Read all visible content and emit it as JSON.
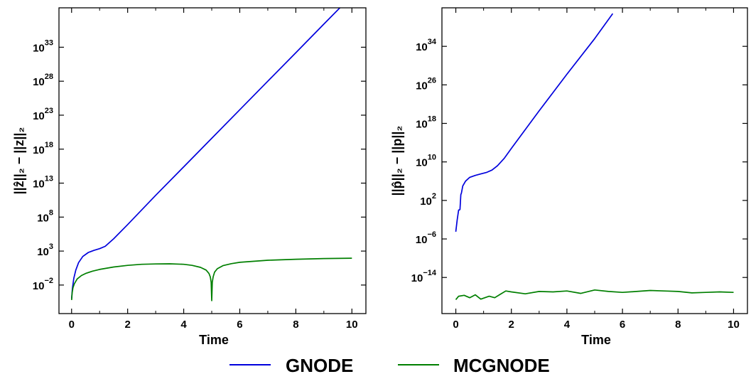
{
  "legend": [
    {
      "name": "GNODE",
      "color": "#0000dd"
    },
    {
      "name": "MCGNODE",
      "color": "#007f00"
    }
  ],
  "chart_data": [
    {
      "type": "line",
      "xlabel": "Time",
      "ylabel": "||ẑ||₂ − ||z||₂",
      "yscale": "log",
      "xlim": [
        -0.45,
        10.5
      ],
      "ylim_exp": [
        -6.2,
        38.8
      ],
      "xticks": [
        0,
        2,
        4,
        6,
        8,
        10
      ],
      "yticks": [
        {
          "exp": -2,
          "label": "10",
          "sup": "−2"
        },
        {
          "exp": 3,
          "label": "10",
          "sup": "3"
        },
        {
          "exp": 8,
          "label": "10",
          "sup": "8"
        },
        {
          "exp": 13,
          "label": "10",
          "sup": "13"
        },
        {
          "exp": 18,
          "label": "10",
          "sup": "18"
        },
        {
          "exp": 23,
          "label": "10",
          "sup": "23"
        },
        {
          "exp": 28,
          "label": "10",
          "sup": "28"
        },
        {
          "exp": 33,
          "label": "10",
          "sup": "33"
        }
      ],
      "series": [
        {
          "name": "GNODE",
          "color": "#0000dd",
          "x": [
            0.0,
            0.03,
            0.08,
            0.15,
            0.25,
            0.4,
            0.6,
            0.8,
            1.0,
            1.2,
            1.5,
            2.0,
            3.0,
            4.0,
            5.0,
            6.0,
            7.0,
            8.0,
            9.0,
            10.0
          ],
          "log10_y": [
            -4.0,
            -2.5,
            -1.0,
            0.2,
            1.3,
            2.2,
            2.8,
            3.1,
            3.35,
            3.7,
            4.8,
            6.9,
            11.2,
            15.4,
            19.6,
            23.8,
            28.0,
            32.2,
            36.4,
            40.6
          ]
        },
        {
          "name": "MCGNODE",
          "color": "#007f00",
          "x": [
            0.0,
            0.02,
            0.05,
            0.1,
            0.2,
            0.35,
            0.5,
            0.75,
            1.0,
            1.5,
            2.0,
            2.5,
            3.0,
            3.5,
            4.0,
            4.3,
            4.6,
            4.8,
            4.9,
            4.95,
            4.98,
            5.0,
            5.02,
            5.05,
            5.1,
            5.2,
            5.4,
            5.7,
            6.0,
            7.0,
            8.0,
            9.0,
            10.0
          ],
          "log10_y": [
            -4.2,
            -3.2,
            -2.4,
            -1.8,
            -1.1,
            -0.6,
            -0.3,
            0.05,
            0.3,
            0.65,
            0.9,
            1.05,
            1.1,
            1.13,
            1.05,
            0.9,
            0.6,
            0.2,
            -0.3,
            -0.8,
            -1.6,
            -4.3,
            -1.6,
            -0.8,
            -0.1,
            0.4,
            0.85,
            1.15,
            1.35,
            1.65,
            1.8,
            1.9,
            1.95
          ]
        }
      ]
    },
    {
      "type": "line",
      "xlabel": "Time",
      "ylabel": "||p̂||₂ − ||p||₂",
      "yscale": "log",
      "xlim": [
        -0.5,
        10.5
      ],
      "ylim_exp": [
        -21.5,
        42.0
      ],
      "xticks": [
        0,
        2,
        4,
        6,
        8,
        10
      ],
      "yticks": [
        {
          "exp": -14,
          "label": "10",
          "sup": "−14"
        },
        {
          "exp": -6,
          "label": "10",
          "sup": "−6"
        },
        {
          "exp": 2,
          "label": "10",
          "sup": "2"
        },
        {
          "exp": 10,
          "label": "10",
          "sup": "10"
        },
        {
          "exp": 18,
          "label": "10",
          "sup": "18"
        },
        {
          "exp": 26,
          "label": "10",
          "sup": "26"
        },
        {
          "exp": 34,
          "label": "10",
          "sup": "34"
        }
      ],
      "series": [
        {
          "name": "GNODE",
          "color": "#0000dd",
          "x": [
            0.0,
            0.05,
            0.1,
            0.12,
            0.15,
            0.18,
            0.2,
            0.25,
            0.35,
            0.5,
            0.7,
            0.9,
            1.1,
            1.3,
            1.5,
            1.75,
            2.0,
            3.0,
            4.0,
            5.0,
            5.65
          ],
          "log10_y": [
            -4.5,
            -2.0,
            0.0,
            0.0,
            0.1,
            3.2,
            3.5,
            5.0,
            6.0,
            6.8,
            7.2,
            7.5,
            7.8,
            8.3,
            9.2,
            10.8,
            12.8,
            20.6,
            28.2,
            35.6,
            40.8
          ]
        },
        {
          "name": "MCGNODE",
          "color": "#007f00",
          "x": [
            0.0,
            0.1,
            0.3,
            0.5,
            0.7,
            0.9,
            1.0,
            1.2,
            1.4,
            1.6,
            1.8,
            2.0,
            2.5,
            3.0,
            3.5,
            4.0,
            4.5,
            5.0,
            5.5,
            6.0,
            6.5,
            7.0,
            7.5,
            8.0,
            8.5,
            9.0,
            9.5,
            10.0
          ],
          "log10_y": [
            -18.6,
            -17.9,
            -17.7,
            -18.2,
            -17.6,
            -18.5,
            -18.3,
            -17.9,
            -18.2,
            -17.5,
            -16.8,
            -17.0,
            -17.4,
            -16.9,
            -17.0,
            -16.8,
            -17.3,
            -16.6,
            -16.9,
            -17.1,
            -16.9,
            -16.7,
            -16.8,
            -16.9,
            -17.2,
            -17.1,
            -17.0,
            -17.1
          ]
        }
      ]
    }
  ]
}
